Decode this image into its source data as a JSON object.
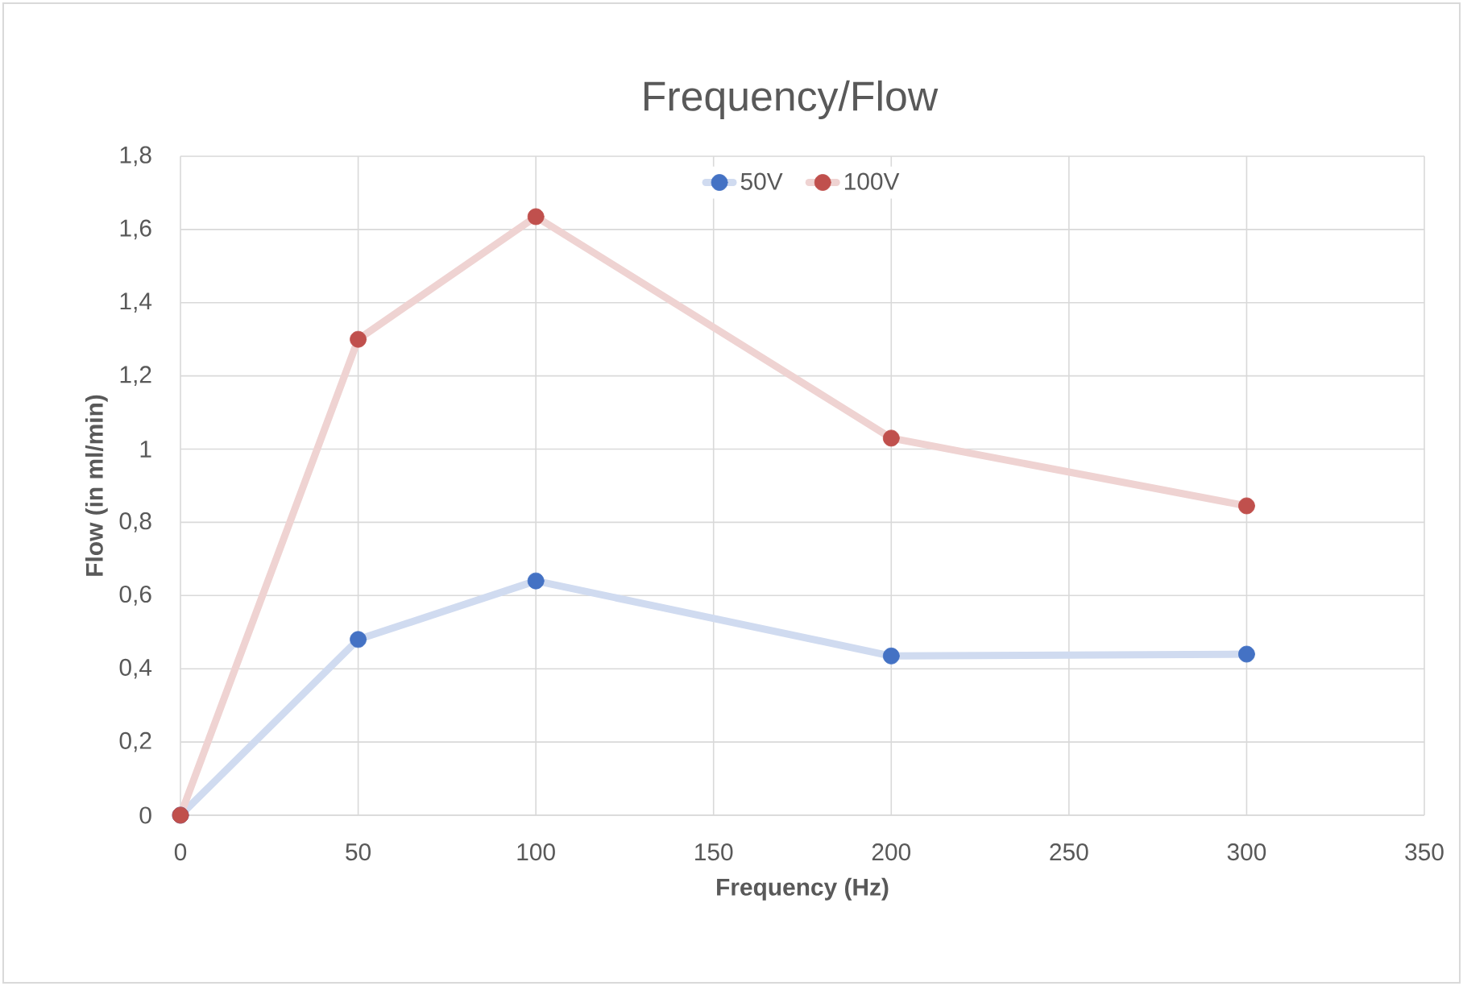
{
  "chart_data": {
    "type": "line",
    "title": "Frequency/Flow",
    "xlabel": "Frequency (Hz)",
    "ylabel": "Flow (in ml/min)",
    "x": [
      0,
      50,
      100,
      200,
      300
    ],
    "series": [
      {
        "name": "50V",
        "color": "#4472c4",
        "values": [
          0,
          0.48,
          0.64,
          0.435,
          0.44
        ]
      },
      {
        "name": "100V",
        "color": "#c0504d",
        "values": [
          0,
          1.3,
          1.635,
          1.03,
          0.845
        ]
      }
    ],
    "xlim": [
      0,
      350
    ],
    "xticks": [
      0,
      50,
      100,
      150,
      200,
      250,
      300,
      350
    ],
    "ylim": [
      0,
      1.8
    ],
    "yticks": [
      0,
      {
        "value": 0.2,
        "label": "0,2"
      },
      {
        "value": 0.4,
        "label": "0,4"
      },
      {
        "value": 0.6,
        "label": "0,6"
      },
      {
        "value": 0.8,
        "label": "0,8"
      },
      1,
      {
        "value": 1.2,
        "label": "1,2"
      },
      {
        "value": 1.4,
        "label": "1,4"
      },
      {
        "value": 1.6,
        "label": "1,6"
      },
      {
        "value": 1.8,
        "label": "1,8"
      }
    ],
    "grid": true,
    "legend": "top",
    "marker": "circle",
    "line_style": "solid"
  }
}
